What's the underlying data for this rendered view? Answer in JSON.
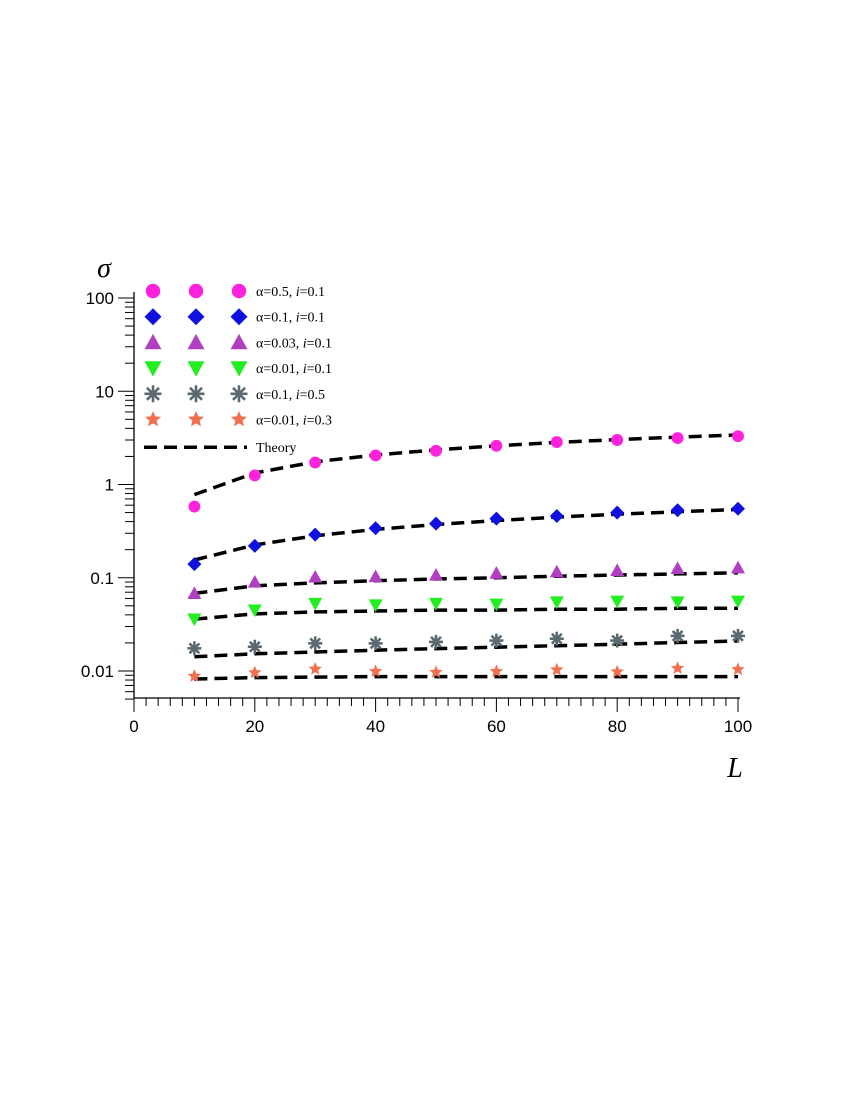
{
  "chart_data": {
    "type": "scatter",
    "xlabel": "L",
    "ylabel": "σ",
    "xlim": [
      0,
      100
    ],
    "ylim": [
      0.005,
      100
    ],
    "yscale": "log",
    "x_ticks": [
      0,
      20,
      40,
      60,
      80,
      100
    ],
    "x_tick_labels": [
      "0",
      "20",
      "40",
      "60",
      "80",
      "100"
    ],
    "y_ticks": [
      0.01,
      0.1,
      1,
      10,
      100
    ],
    "y_tick_labels": [
      "0.01",
      "0.1",
      "1",
      "10",
      "100"
    ],
    "grid": false,
    "legend_position": "top-left",
    "x": [
      10,
      20,
      30,
      40,
      50,
      60,
      70,
      80,
      90,
      100
    ],
    "series": [
      {
        "alpha": "0.5",
        "i": "0.1",
        "marker": "circle",
        "color": "#ff22dd",
        "values": [
          0.58,
          1.25,
          1.72,
          2.05,
          2.3,
          2.6,
          2.85,
          3.0,
          3.15,
          3.3
        ]
      },
      {
        "alpha": "0.1",
        "i": "0.1",
        "marker": "diamond",
        "color": "#1010e0",
        "values": [
          0.14,
          0.22,
          0.29,
          0.34,
          0.38,
          0.43,
          0.46,
          0.5,
          0.53,
          0.55
        ]
      },
      {
        "alpha": "0.03",
        "i": "0.1",
        "marker": "triangle-up",
        "color": "#b040c0",
        "values": [
          0.068,
          0.09,
          0.102,
          0.103,
          0.107,
          0.112,
          0.116,
          0.12,
          0.126,
          0.128
        ]
      },
      {
        "alpha": "0.01",
        "i": "0.1",
        "marker": "triangle-down",
        "color": "#22ee22",
        "values": [
          0.036,
          0.045,
          0.053,
          0.051,
          0.053,
          0.052,
          0.055,
          0.056,
          0.055,
          0.056
        ]
      },
      {
        "alpha": "0.1",
        "i": "0.5",
        "marker": "asterisk",
        "color": "#5a6a70",
        "values": [
          0.0175,
          0.0182,
          0.0198,
          0.0198,
          0.0205,
          0.0212,
          0.0222,
          0.0212,
          0.0238,
          0.0238
        ]
      },
      {
        "alpha": "0.01",
        "i": "0.3",
        "marker": "star",
        "color": "#f07050",
        "values": [
          0.0088,
          0.0096,
          0.0105,
          0.0099,
          0.0097,
          0.0099,
          0.0103,
          0.0098,
          0.0107,
          0.0104
        ]
      }
    ],
    "theory": {
      "label": "Theory",
      "x": [
        10,
        20,
        30,
        40,
        50,
        60,
        70,
        80,
        90,
        100
      ],
      "curves": [
        [
          0.78,
          1.33,
          1.75,
          2.07,
          2.35,
          2.6,
          2.83,
          3.03,
          3.22,
          3.4
        ],
        [
          0.155,
          0.225,
          0.282,
          0.33,
          0.372,
          0.41,
          0.447,
          0.48,
          0.51,
          0.54
        ],
        [
          0.068,
          0.082,
          0.088,
          0.093,
          0.097,
          0.1,
          0.104,
          0.107,
          0.11,
          0.113
        ],
        [
          0.036,
          0.041,
          0.043,
          0.044,
          0.045,
          0.045,
          0.046,
          0.046,
          0.047,
          0.047
        ],
        [
          0.0142,
          0.0153,
          0.016,
          0.0167,
          0.0174,
          0.018,
          0.0187,
          0.0194,
          0.0202,
          0.021
        ],
        [
          0.0082,
          0.0085,
          0.0086,
          0.0087,
          0.0087,
          0.0087,
          0.0087,
          0.0087,
          0.0087,
          0.0087
        ]
      ]
    }
  }
}
